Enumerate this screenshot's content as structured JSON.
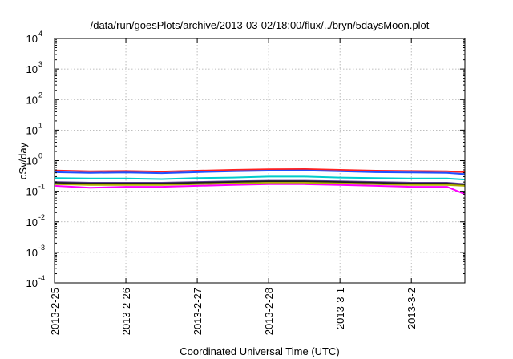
{
  "chart_data": {
    "type": "line",
    "title": "/data/run/goesPlots/archive/2013-03-02/18:00/flux/../bryn/5daysMoon.plot",
    "xlabel": "Coordinated Universal Time (UTC)",
    "ylabel": "cSv/day",
    "yscale": "log",
    "ylim": [
      0.0001,
      10000
    ],
    "xlim": [
      "2013-02-25",
      "2013-03-02T18:00"
    ],
    "grid": true,
    "legend": "none",
    "y_ticks": [
      {
        "value": 10000,
        "base": "10",
        "exp": "4"
      },
      {
        "value": 1000,
        "base": "10",
        "exp": "3"
      },
      {
        "value": 100,
        "base": "10",
        "exp": "2"
      },
      {
        "value": 10,
        "base": "10",
        "exp": "1"
      },
      {
        "value": 1,
        "base": "10",
        "exp": "0"
      },
      {
        "value": 0.1,
        "base": "10",
        "exp": "-1"
      },
      {
        "value": 0.01,
        "base": "10",
        "exp": "-2"
      },
      {
        "value": 0.001,
        "base": "10",
        "exp": "-3"
      },
      {
        "value": 0.0001,
        "base": "10",
        "exp": "-4"
      }
    ],
    "x_ticks": [
      {
        "value": "2013-02-25",
        "label": "2013-2-25"
      },
      {
        "value": "2013-02-26",
        "label": "2013-2-26"
      },
      {
        "value": "2013-02-27",
        "label": "2013-2-27"
      },
      {
        "value": "2013-02-28",
        "label": "2013-2-28"
      },
      {
        "value": "2013-03-01",
        "label": "2013-3-1"
      },
      {
        "value": "2013-03-02",
        "label": "2013-3-2"
      }
    ],
    "x": [
      "2013-02-25T00:00",
      "2013-02-25T12:00",
      "2013-02-26T00:00",
      "2013-02-26T12:00",
      "2013-02-27T00:00",
      "2013-02-27T12:00",
      "2013-02-28T00:00",
      "2013-02-28T12:00",
      "2013-03-01T00:00",
      "2013-03-01T12:00",
      "2013-03-02T00:00",
      "2013-03-02T12:00",
      "2013-03-02T18:00"
    ],
    "series": [
      {
        "color": "#ff2020",
        "values": [
          0.48,
          0.45,
          0.46,
          0.44,
          0.47,
          0.5,
          0.52,
          0.53,
          0.5,
          0.47,
          0.46,
          0.45,
          0.42
        ]
      },
      {
        "color": "#2050ff",
        "values": [
          0.42,
          0.4,
          0.41,
          0.39,
          0.42,
          0.45,
          0.47,
          0.48,
          0.45,
          0.42,
          0.41,
          0.4,
          0.36
        ]
      },
      {
        "color": "#00cccc",
        "values": [
          0.27,
          0.26,
          0.26,
          0.25,
          0.27,
          0.28,
          0.3,
          0.3,
          0.28,
          0.27,
          0.26,
          0.26,
          0.24
        ]
      },
      {
        "color": "#6040a0",
        "values": [
          0.2,
          0.19,
          0.19,
          0.19,
          0.2,
          0.21,
          0.22,
          0.22,
          0.21,
          0.2,
          0.19,
          0.19,
          0.17
        ]
      },
      {
        "color": "#202020",
        "values": [
          0.19,
          0.18,
          0.18,
          0.18,
          0.19,
          0.2,
          0.21,
          0.21,
          0.2,
          0.19,
          0.18,
          0.18,
          0.16
        ]
      },
      {
        "color": "#b0b000",
        "values": [
          0.17,
          0.16,
          0.16,
          0.16,
          0.17,
          0.18,
          0.19,
          0.19,
          0.18,
          0.17,
          0.16,
          0.16,
          0.15
        ]
      },
      {
        "color": "#ff00ff",
        "values": [
          0.15,
          0.13,
          0.14,
          0.14,
          0.15,
          0.16,
          0.17,
          0.17,
          0.16,
          0.15,
          0.14,
          0.14,
          0.08
        ]
      }
    ]
  }
}
